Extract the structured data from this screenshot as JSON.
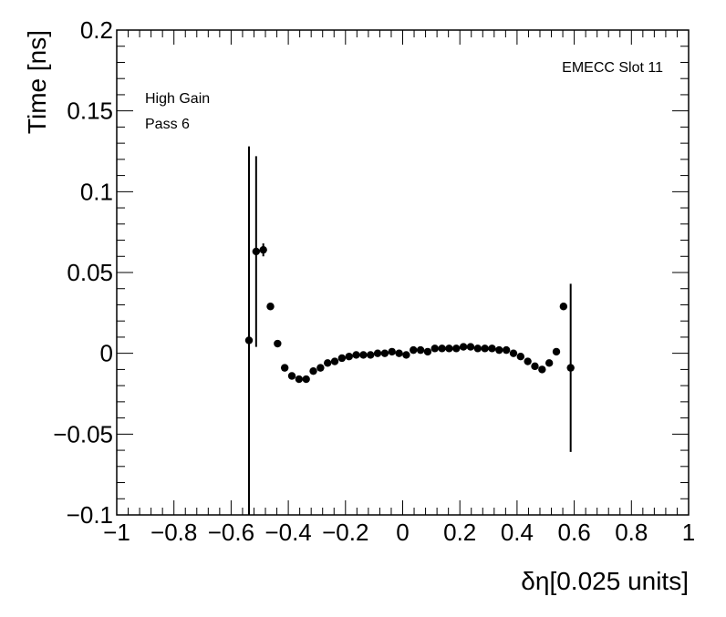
{
  "chart_data": {
    "type": "scatter",
    "xlabel": "δη[0.025 units]",
    "ylabel": "Time [ns]",
    "xlim": [
      -1,
      1
    ],
    "ylim": [
      -0.1,
      0.2
    ],
    "x_ticks": [
      -1,
      -0.8,
      -0.6,
      -0.4,
      -0.2,
      0,
      0.2,
      0.4,
      0.6,
      0.8,
      1
    ],
    "x_tick_labels": [
      "−1",
      "−0.8",
      "−0.6",
      "−0.4",
      "−0.2",
      "0",
      "0.2",
      "0.4",
      "0.6",
      "0.8",
      "1"
    ],
    "y_ticks": [
      -0.1,
      -0.05,
      0,
      0.05,
      0.1,
      0.15,
      0.2
    ],
    "y_tick_labels": [
      "−0.1",
      "−0.05",
      "0",
      "0.05",
      "0.1",
      "0.15",
      "0.2"
    ],
    "grid": false,
    "annotations": {
      "top_right": "EMECC Slot 11",
      "top_left_line1": "High Gain",
      "top_left_line2": "Pass 6"
    },
    "marker_color": "#000000",
    "points": [
      {
        "x": -0.5375,
        "y": 0.008,
        "err": 0.12
      },
      {
        "x": -0.5125,
        "y": 0.063,
        "err": 0.059
      },
      {
        "x": -0.4875,
        "y": 0.064,
        "err": 0.004
      },
      {
        "x": -0.4625,
        "y": 0.029,
        "err": 0.001
      },
      {
        "x": -0.4375,
        "y": 0.006,
        "err": 0.001
      },
      {
        "x": -0.4125,
        "y": -0.009,
        "err": 0.0008
      },
      {
        "x": -0.3875,
        "y": -0.014,
        "err": 0.0008
      },
      {
        "x": -0.3625,
        "y": -0.016,
        "err": 0.0007
      },
      {
        "x": -0.3375,
        "y": -0.016,
        "err": 0.0007
      },
      {
        "x": -0.3125,
        "y": -0.011,
        "err": 0.0007
      },
      {
        "x": -0.2875,
        "y": -0.009,
        "err": 0.0006
      },
      {
        "x": -0.2625,
        "y": -0.006,
        "err": 0.0006
      },
      {
        "x": -0.2375,
        "y": -0.005,
        "err": 0.0006
      },
      {
        "x": -0.2125,
        "y": -0.003,
        "err": 0.0006
      },
      {
        "x": -0.1875,
        "y": -0.002,
        "err": 0.0006
      },
      {
        "x": -0.1625,
        "y": -0.001,
        "err": 0.0006
      },
      {
        "x": -0.1375,
        "y": -0.001,
        "err": 0.0006
      },
      {
        "x": -0.1125,
        "y": -0.001,
        "err": 0.0006
      },
      {
        "x": -0.0875,
        "y": 0.0,
        "err": 0.0006
      },
      {
        "x": -0.0625,
        "y": 0.0,
        "err": 0.0006
      },
      {
        "x": -0.0375,
        "y": 0.001,
        "err": 0.0006
      },
      {
        "x": -0.0125,
        "y": 0.0,
        "err": 0.0006
      },
      {
        "x": 0.0125,
        "y": -0.001,
        "err": 0.0006
      },
      {
        "x": 0.0375,
        "y": 0.002,
        "err": 0.0006
      },
      {
        "x": 0.0625,
        "y": 0.002,
        "err": 0.0006
      },
      {
        "x": 0.0875,
        "y": 0.001,
        "err": 0.0006
      },
      {
        "x": 0.1125,
        "y": 0.003,
        "err": 0.0006
      },
      {
        "x": 0.1375,
        "y": 0.003,
        "err": 0.0006
      },
      {
        "x": 0.1625,
        "y": 0.003,
        "err": 0.0006
      },
      {
        "x": 0.1875,
        "y": 0.003,
        "err": 0.0006
      },
      {
        "x": 0.2125,
        "y": 0.004,
        "err": 0.0006
      },
      {
        "x": 0.2375,
        "y": 0.004,
        "err": 0.0006
      },
      {
        "x": 0.2625,
        "y": 0.003,
        "err": 0.0006
      },
      {
        "x": 0.2875,
        "y": 0.003,
        "err": 0.0006
      },
      {
        "x": 0.3125,
        "y": 0.003,
        "err": 0.0006
      },
      {
        "x": 0.3375,
        "y": 0.002,
        "err": 0.0006
      },
      {
        "x": 0.3625,
        "y": 0.002,
        "err": 0.0006
      },
      {
        "x": 0.3875,
        "y": 0.0,
        "err": 0.0006
      },
      {
        "x": 0.4125,
        "y": -0.002,
        "err": 0.0006
      },
      {
        "x": 0.4375,
        "y": -0.005,
        "err": 0.0007
      },
      {
        "x": 0.4625,
        "y": -0.008,
        "err": 0.0007
      },
      {
        "x": 0.4875,
        "y": -0.01,
        "err": 0.0008
      },
      {
        "x": 0.5125,
        "y": -0.006,
        "err": 0.0009
      },
      {
        "x": 0.5375,
        "y": 0.001,
        "err": 0.001
      },
      {
        "x": 0.5625,
        "y": 0.029,
        "err": 0.001
      },
      {
        "x": 0.5875,
        "y": -0.009,
        "err": 0.052
      }
    ]
  }
}
